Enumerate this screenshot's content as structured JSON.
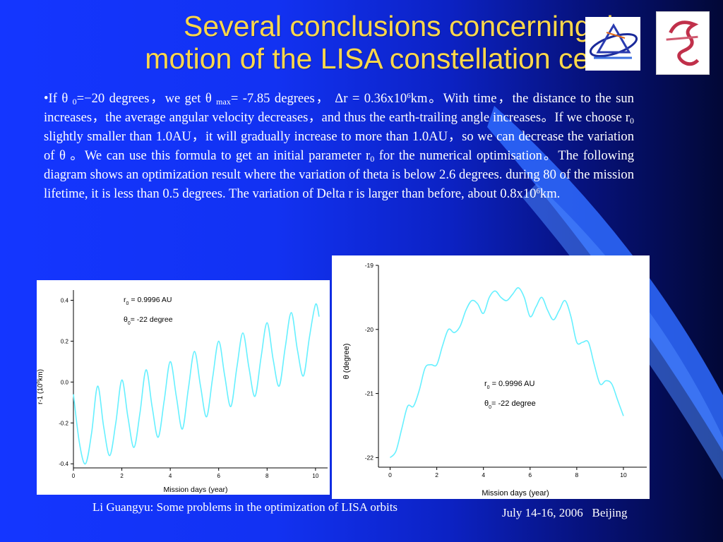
{
  "slide": {
    "title_line1": "Several conclusions concerning the",
    "title_line2": "motion of the LISA constellation center",
    "body": {
      "bullet": "•",
      "p1": "If θ ",
      "sub_theta0": "0",
      "p2": "=−20 degrees，we get θ ",
      "sub_max": "max",
      "p3": "= -7.85 degrees， Δr = 0.36x10",
      "sup1": "6",
      "p4": "km。With time，the distance to the sun increases，the average angular velocity decreases，and thus the earth-trailing angle increases。If we choose r",
      "sub_r0_a": "0",
      "p5": " slightly smaller than 1.0AU，it will gradually increase to more than 1.0AU，so we can decrease the variation of θ 。We can use this formula to get an initial parameter r",
      "sub_r0_b": "0",
      "p6": " for the numerical optimisation。The following diagram shows an optimization result where the variation of theta is below 2.6 degrees. during 80 of the mission lifetime, it is less than 0.5 degrees. The variation of Delta r is larger than before, about 0.8x10",
      "sup2": "6",
      "p7": "km."
    },
    "footer_left": "Li Guangyu: Some problems in the optimization of LISA orbits",
    "footer_right": "July 14-16, 2006   Beijing",
    "colors": {
      "title": "#ffd84a",
      "curve": "#66f0ff",
      "background": "#1436ff",
      "text": "#ffffff"
    },
    "logos": [
      "lisa-logo-icon",
      "institute-logo-icon"
    ]
  },
  "chart_data": [
    {
      "type": "line",
      "ylabel_pre": "r-1 (10",
      "ylabel_sup": "6",
      "ylabel_post": "km)",
      "xlabel": "Mission days (year)",
      "xlim": [
        0,
        10.5
      ],
      "ylim": [
        -0.42,
        0.45
      ],
      "xticks": [
        "0",
        "2",
        "4",
        "6",
        "8",
        "10"
      ],
      "yticks": [
        "0.4",
        "0.2",
        "0.0",
        "-0.2",
        "-0.4"
      ],
      "annotation": {
        "r_text": "r",
        "r_sub": "0",
        "r_value": "=   0.9996 AU",
        "theta_text": "θ",
        "theta_sub": "0",
        "theta_value": "=   -22 degree"
      },
      "series": [
        {
          "x": [
            0,
            0.25,
            0.5,
            0.75,
            1.0,
            1.25,
            1.5,
            1.75,
            2.0,
            2.25,
            2.5,
            2.75,
            3.0,
            3.25,
            3.5,
            3.75,
            4.0,
            4.25,
            4.5,
            4.75,
            5.0,
            5.25,
            5.5,
            5.75,
            6.0,
            6.25,
            6.5,
            6.75,
            7.0,
            7.25,
            7.5,
            7.75,
            8.0,
            8.25,
            8.5,
            8.75,
            9.0,
            9.25,
            9.5,
            9.75,
            10.0,
            10.15
          ],
          "y": [
            -0.06,
            -0.3,
            -0.4,
            -0.25,
            -0.02,
            -0.22,
            -0.36,
            -0.2,
            0.01,
            -0.17,
            -0.32,
            -0.15,
            0.06,
            -0.12,
            -0.27,
            -0.09,
            0.1,
            -0.07,
            -0.23,
            -0.03,
            0.15,
            -0.02,
            -0.17,
            0.02,
            0.2,
            0.03,
            -0.12,
            0.07,
            0.24,
            0.07,
            -0.07,
            0.12,
            0.29,
            0.11,
            -0.02,
            0.17,
            0.34,
            0.16,
            0.03,
            0.22,
            0.38,
            0.32
          ]
        }
      ]
    },
    {
      "type": "line",
      "ylabel": "θ  (degree)",
      "xlabel": "Mission days (year)",
      "xlim": [
        -0.5,
        11
      ],
      "ylim": [
        -22.15,
        -19.0
      ],
      "xticks": [
        "0",
        "2",
        "4",
        "6",
        "8",
        "10"
      ],
      "yticks": [
        "-19",
        "-20",
        "-21",
        "-22"
      ],
      "annotation": {
        "r_text": "r",
        "r_sub": "0",
        "r_value": "=   0.9996 AU",
        "theta_text": "θ",
        "theta_sub": "0",
        "theta_value": "=   -22 degree"
      },
      "series": [
        {
          "x": [
            0,
            0.25,
            0.5,
            0.75,
            1.0,
            1.25,
            1.5,
            1.75,
            2.0,
            2.25,
            2.5,
            2.75,
            3.0,
            3.25,
            3.5,
            3.75,
            4.0,
            4.25,
            4.5,
            4.75,
            5.0,
            5.25,
            5.5,
            5.75,
            6.0,
            6.25,
            6.5,
            6.75,
            7.0,
            7.25,
            7.5,
            7.75,
            8.0,
            8.25,
            8.5,
            8.75,
            9.0,
            9.25,
            9.5,
            9.75,
            10.0
          ],
          "y": [
            -22.0,
            -21.9,
            -21.55,
            -21.2,
            -21.2,
            -20.95,
            -20.6,
            -20.55,
            -20.55,
            -20.25,
            -20.0,
            -20.05,
            -19.95,
            -19.7,
            -19.55,
            -19.6,
            -19.75,
            -19.5,
            -19.4,
            -19.5,
            -19.55,
            -19.45,
            -19.35,
            -19.5,
            -19.8,
            -19.65,
            -19.5,
            -19.7,
            -19.85,
            -19.7,
            -19.55,
            -19.8,
            -20.2,
            -20.2,
            -20.2,
            -20.55,
            -20.85,
            -20.8,
            -20.85,
            -21.1,
            -21.35
          ]
        }
      ]
    }
  ]
}
